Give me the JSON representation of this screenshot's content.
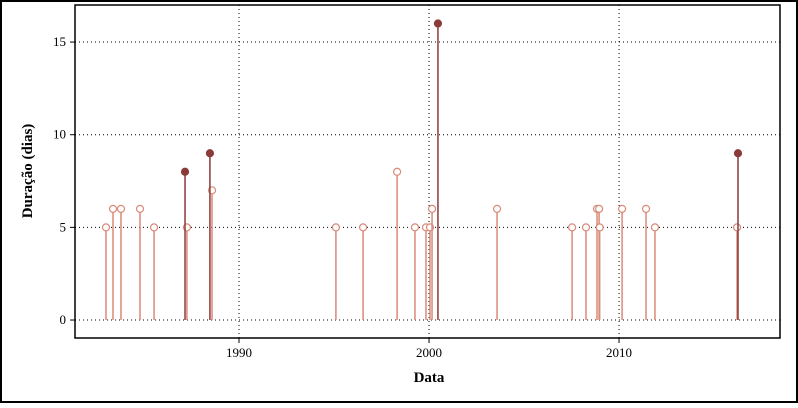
{
  "chart_data": {
    "type": "stem",
    "x_label": "Data",
    "y_label": "Duração (dias)",
    "xlim": [
      1981.37,
      2018.47
    ],
    "ylim": [
      -0.97,
      17.0
    ],
    "xticks": [
      1990,
      2000,
      2010
    ],
    "yticks": [
      0,
      5,
      10,
      15
    ],
    "grid": true,
    "series": [
      {
        "color": "#d98a78",
        "marker": "open",
        "x": [
          1983.0,
          1983.37,
          1983.79,
          1984.79,
          1985.53,
          1987.26,
          1988.58,
          1995.1,
          1996.53,
          1998.32,
          1999.26,
          1999.84,
          2000.05,
          2000.16,
          2003.58,
          2007.53,
          2008.26,
          2008.84,
          2008.95,
          2008.98,
          2010.16,
          2011.42,
          2011.89,
          2016.21
        ],
        "values": [
          5,
          6,
          6,
          6,
          5,
          5,
          7,
          5,
          5,
          8,
          5,
          5,
          5,
          6,
          6,
          5,
          5,
          6,
          6,
          5,
          6,
          6,
          5,
          5
        ]
      },
      {
        "color": "#8b3a3a",
        "marker": "filled",
        "x": [
          1987.16,
          1988.47,
          2000.47,
          2016.26
        ],
        "values": [
          8,
          9,
          16,
          9
        ]
      }
    ]
  }
}
